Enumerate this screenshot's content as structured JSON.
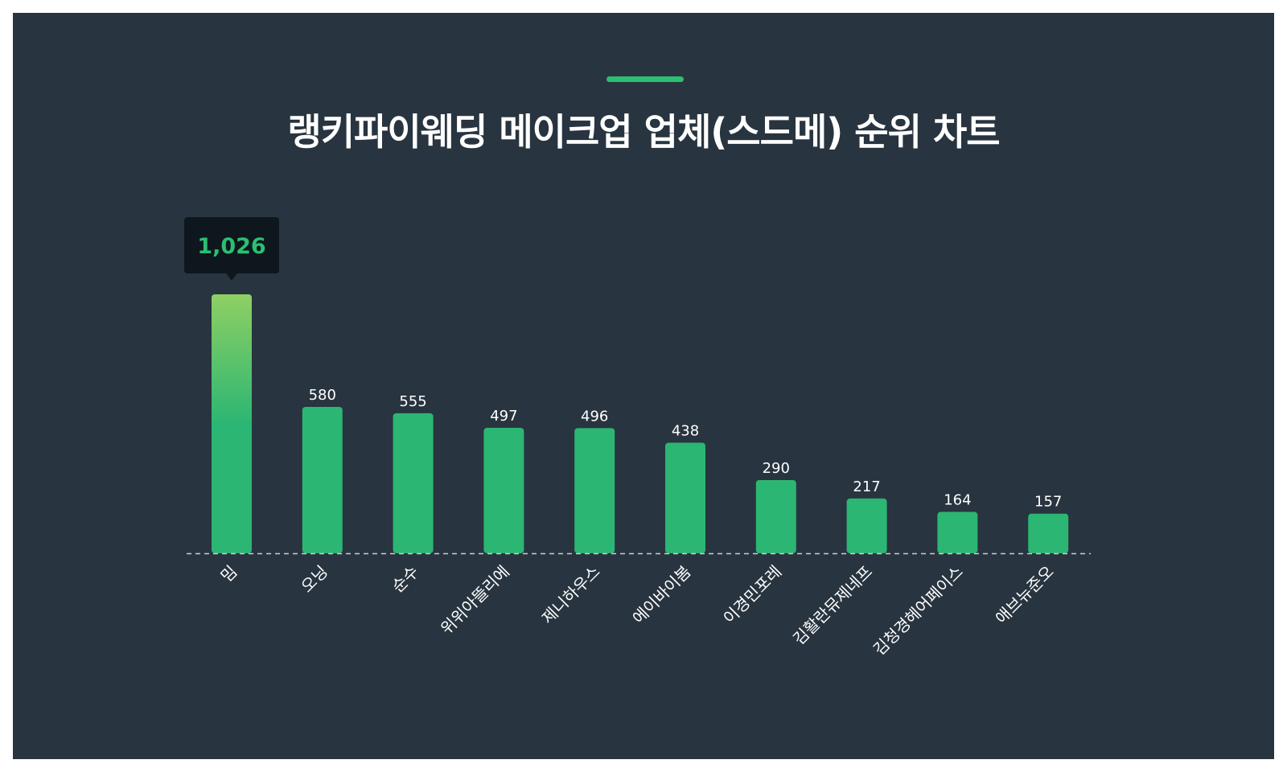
{
  "page": {
    "title": "랭키파이웨딩 메이크업 업체(스드메) 순위 차트"
  },
  "colors": {
    "background": "#28343f",
    "bar": "#2bb673",
    "bar_top_highlight": "#8fd063",
    "accent": "#2bbf72",
    "tooltip_bg": "#0e171d",
    "tooltip_text": "#2bbf72",
    "text": "#ffffff",
    "baseline": "#c9d0d6"
  },
  "chart_data": {
    "type": "bar",
    "title": "랭키파이웨딩 메이크업 업체(스드메) 순위 차트",
    "xlabel": "",
    "ylabel": "",
    "categories": [
      "밈",
      "오닝",
      "순수",
      "위위아뜰리에",
      "제니하우스",
      "에이바이봄",
      "이경민포레",
      "김활란뮤제네프",
      "김청경헤어페이스",
      "애브뉴준오"
    ],
    "values": [
      1026,
      580,
      555,
      497,
      496,
      438,
      290,
      217,
      164,
      157
    ],
    "value_labels": [
      "1,026",
      "580",
      "555",
      "497",
      "496",
      "438",
      "290",
      "217",
      "164",
      "157"
    ],
    "ylim": [
      0,
      1026
    ],
    "grid": false,
    "legend": "none",
    "highlight_index": 0
  }
}
